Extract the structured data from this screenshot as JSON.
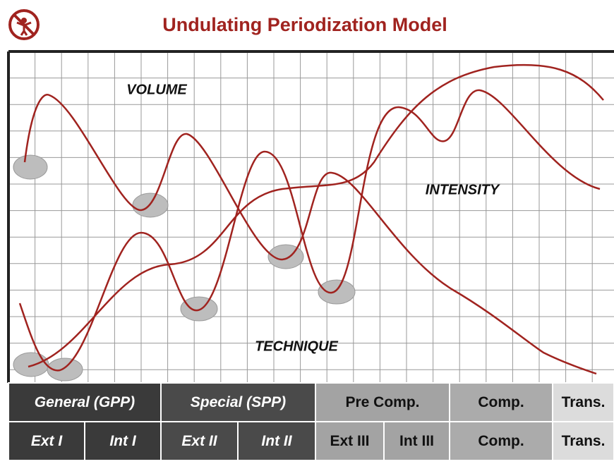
{
  "header": {
    "title": "Undulating Periodization Model"
  },
  "labels": {
    "volume": "VOLUME",
    "intensity": "INTENSITY",
    "technique": "TECHNIQUE"
  },
  "phases": {
    "rows": [
      [
        "General (GPP)",
        "Special (SPP)",
        "Pre Comp.",
        "Comp.",
        "Trans."
      ],
      [
        "Ext I",
        "Int I",
        "Ext II",
        "Int II",
        "Ext III",
        "Int III",
        "Comp.",
        "Trans."
      ]
    ]
  }
}
